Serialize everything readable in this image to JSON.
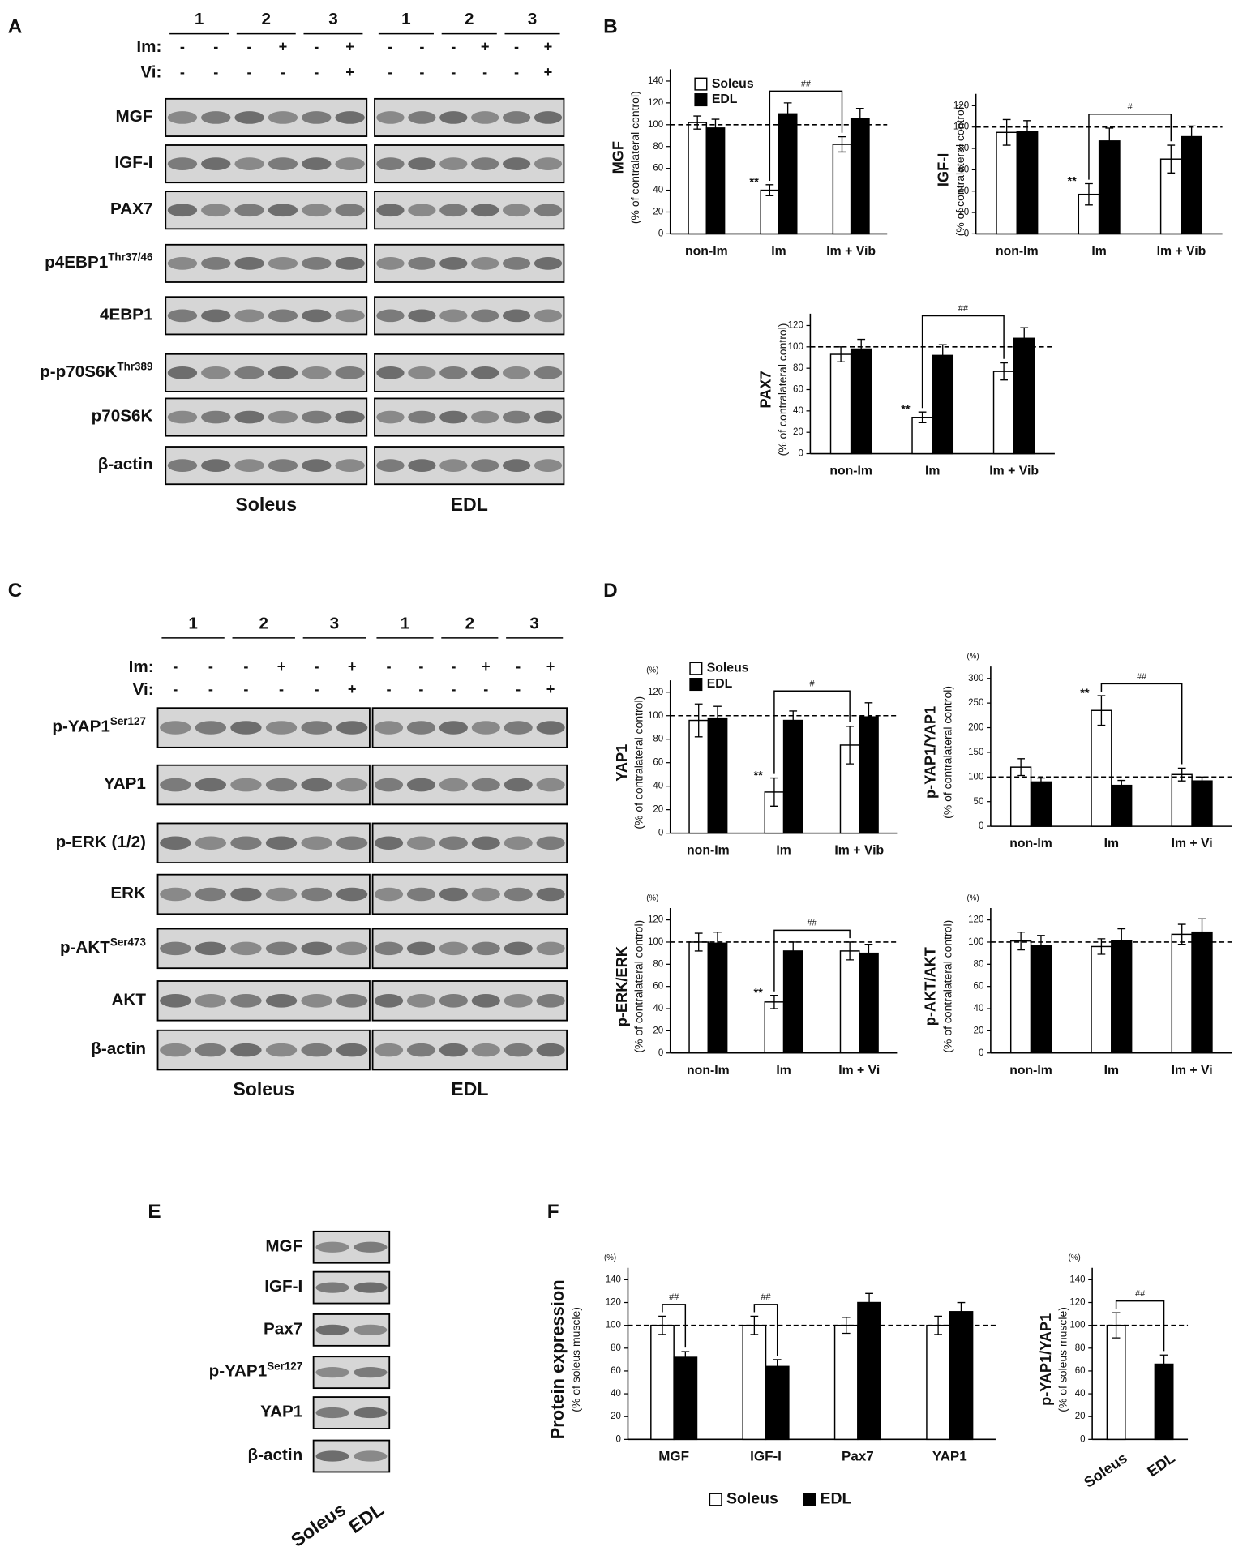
{
  "panels": [
    "A",
    "B",
    "C",
    "D",
    "E",
    "F"
  ],
  "blots": {
    "A": {
      "lanes": [
        "1",
        "2",
        "3"
      ],
      "im_label": "Im:",
      "vi_label": "Vi:",
      "im": [
        "-",
        "-",
        "-",
        "+",
        "-",
        "+"
      ],
      "vi": [
        "-",
        "-",
        "-",
        "-",
        "-",
        "+"
      ],
      "rows": [
        {
          "name": "MGF"
        },
        {
          "name": "IGF-I"
        },
        {
          "name": "PAX7"
        },
        {
          "name": "p4EBP1",
          "sup": "Thr37/46"
        },
        {
          "name": "4EBP1"
        },
        {
          "name": "p-p70S6K",
          "sup": "Thr389"
        },
        {
          "name": "p70S6K"
        },
        {
          "name": "β-actin"
        }
      ],
      "tissues": [
        "Soleus",
        "EDL"
      ]
    },
    "C": {
      "lanes": [
        "1",
        "2",
        "3"
      ],
      "im_label": "Im:",
      "vi_label": "Vi:",
      "im": [
        "-",
        "-",
        "-",
        "+",
        "-",
        "+"
      ],
      "vi": [
        "-",
        "-",
        "-",
        "-",
        "-",
        "+"
      ],
      "rows": [
        {
          "name": "p-YAP1",
          "sup": "Ser127"
        },
        {
          "name": "YAP1"
        },
        {
          "name": "p-ERK (1/2)"
        },
        {
          "name": "ERK"
        },
        {
          "name": "p-AKT",
          "sup": "Ser473"
        },
        {
          "name": "AKT"
        },
        {
          "name": "β-actin"
        }
      ],
      "tissues": [
        "Soleus",
        "EDL"
      ]
    },
    "E": {
      "rows": [
        {
          "name": "MGF"
        },
        {
          "name": "IGF-I"
        },
        {
          "name": "Pax7"
        },
        {
          "name": "p-YAP1",
          "sup": "Ser127"
        },
        {
          "name": "YAP1"
        },
        {
          "name": "β-actin"
        }
      ],
      "tissues": [
        "Soleus",
        "EDL"
      ]
    }
  },
  "chart_data": [
    {
      "type": "bar",
      "ylabel": "MGF",
      "ysublabel": "(% of contralateral control)",
      "categories": [
        "non-Im",
        "Im",
        "Im + Vib"
      ],
      "series": [
        {
          "name": "Soleus",
          "color": "#ffffff",
          "values": [
            102,
            40,
            82
          ],
          "errors": [
            6,
            5,
            7
          ]
        },
        {
          "name": "EDL",
          "color": "#000000",
          "values": [
            97,
            110,
            106
          ],
          "errors": [
            8,
            10,
            9
          ]
        }
      ],
      "ylim": [
        0,
        140
      ],
      "yticks": [
        0,
        20,
        40,
        60,
        80,
        100,
        120,
        140
      ],
      "refline": 100,
      "legend": "top-left",
      "brackets": [
        {
          "between": [
            [
              1,
              0
            ],
            [
              2,
              0
            ]
          ],
          "label": "##"
        }
      ],
      "annotations": [
        {
          "at": [
            1,
            0
          ],
          "label": "**"
        }
      ]
    },
    {
      "type": "bar",
      "ylabel": "IGF-I",
      "ysublabel": "(% of contralateral control)",
      "categories": [
        "non-Im",
        "Im",
        "Im + Vib"
      ],
      "series": [
        {
          "color": "#ffffff",
          "values": [
            95,
            37,
            70
          ],
          "errors": [
            12,
            10,
            13
          ]
        },
        {
          "color": "#000000",
          "values": [
            96,
            87,
            91
          ],
          "errors": [
            10,
            12,
            10
          ]
        }
      ],
      "ylim": [
        0,
        120
      ],
      "yticks": [
        0,
        20,
        40,
        60,
        80,
        100,
        120
      ],
      "refline": 100,
      "brackets": [
        {
          "between": [
            [
              1,
              0
            ],
            [
              2,
              0
            ]
          ],
          "label": "#"
        }
      ],
      "annotations": [
        {
          "at": [
            1,
            0
          ],
          "label": "**"
        }
      ]
    },
    {
      "type": "bar",
      "ylabel": "PAX7",
      "ysublabel": "(% of contralateral control)",
      "categories": [
        "non-Im",
        "Im",
        "Im + Vib"
      ],
      "series": [
        {
          "color": "#ffffff",
          "values": [
            93,
            34,
            77
          ],
          "errors": [
            7,
            5,
            8
          ]
        },
        {
          "color": "#000000",
          "values": [
            98,
            92,
            108
          ],
          "errors": [
            9,
            10,
            10
          ]
        }
      ],
      "ylim": [
        0,
        120
      ],
      "yticks": [
        0,
        20,
        40,
        60,
        80,
        100,
        120
      ],
      "refline": 100,
      "brackets": [
        {
          "between": [
            [
              1,
              0
            ],
            [
              2,
              0
            ]
          ],
          "label": "##"
        }
      ],
      "annotations": [
        {
          "at": [
            1,
            0
          ],
          "label": "**"
        }
      ]
    },
    {
      "type": "bar",
      "ylabel": "YAP1",
      "ysublabel": "(% of contralateral control)",
      "unit": "(%)",
      "categories": [
        "non-Im",
        "Im",
        "Im + Vib"
      ],
      "series": [
        {
          "name": "Soleus",
          "color": "#ffffff",
          "values": [
            96,
            35,
            75
          ],
          "errors": [
            14,
            12,
            16
          ]
        },
        {
          "name": "EDL",
          "color": "#000000",
          "values": [
            98,
            96,
            99
          ],
          "errors": [
            10,
            8,
            12
          ]
        }
      ],
      "ylim": [
        0,
        120
      ],
      "yticks": [
        0,
        20,
        40,
        60,
        80,
        100,
        120
      ],
      "refline": 100,
      "legend": "top-left",
      "brackets": [
        {
          "between": [
            [
              1,
              0
            ],
            [
              2,
              0
            ]
          ],
          "label": "#"
        }
      ],
      "annotations": [
        {
          "at": [
            1,
            0
          ],
          "label": "**"
        }
      ]
    },
    {
      "type": "bar",
      "ylabel": "p-YAP1/YAP1",
      "ysublabel": "(% of contralateral control)",
      "unit": "(%)",
      "categories": [
        "non-Im",
        "Im",
        "Im + Vi"
      ],
      "series": [
        {
          "color": "#ffffff",
          "values": [
            120,
            235,
            105
          ],
          "errors": [
            17,
            30,
            13
          ]
        },
        {
          "color": "#000000",
          "values": [
            90,
            83,
            92
          ],
          "errors": [
            8,
            10,
            8
          ]
        }
      ],
      "ylim": [
        0,
        300
      ],
      "yticks": [
        0,
        50,
        100,
        150,
        200,
        250,
        300
      ],
      "refline": 100,
      "brackets": [
        {
          "between": [
            [
              1,
              0
            ],
            [
              2,
              0
            ]
          ],
          "label": "##"
        }
      ],
      "annotations": [
        {
          "at": [
            1,
            0
          ],
          "label": "**"
        }
      ]
    },
    {
      "type": "bar",
      "ylabel": "p-ERK/ERK",
      "ysublabel": "(% of contralateral control)",
      "unit": "(%)",
      "categories": [
        "non-Im",
        "Im",
        "Im + Vi"
      ],
      "series": [
        {
          "color": "#ffffff",
          "values": [
            100,
            46,
            92
          ],
          "errors": [
            8,
            6,
            8
          ]
        },
        {
          "color": "#000000",
          "values": [
            99,
            92,
            90
          ],
          "errors": [
            10,
            8,
            8
          ]
        }
      ],
      "ylim": [
        0,
        120
      ],
      "yticks": [
        0,
        20,
        40,
        60,
        80,
        100,
        120
      ],
      "refline": 100,
      "brackets": [
        {
          "between": [
            [
              1,
              0
            ],
            [
              2,
              0
            ]
          ],
          "label": "##"
        }
      ],
      "annotations": [
        {
          "at": [
            1,
            0
          ],
          "label": "**"
        }
      ]
    },
    {
      "type": "bar",
      "ylabel": "p-AKT/AKT",
      "ysublabel": "(% of contralateral control)",
      "unit": "(%)",
      "categories": [
        "non-Im",
        "Im",
        "Im + Vi"
      ],
      "series": [
        {
          "color": "#ffffff",
          "values": [
            101,
            96,
            107
          ],
          "errors": [
            8,
            7,
            9
          ]
        },
        {
          "color": "#000000",
          "values": [
            97,
            101,
            109
          ],
          "errors": [
            9,
            11,
            12
          ]
        }
      ],
      "ylim": [
        0,
        120
      ],
      "yticks": [
        0,
        20,
        40,
        60,
        80,
        100,
        120
      ],
      "refline": 100
    },
    {
      "type": "bar",
      "ylabel": "Protein expression",
      "ysublabel": "(% of soleus muscle)",
      "unit": "(%)",
      "categories": [
        "MGF",
        "IGF-I",
        "Pax7",
        "YAP1"
      ],
      "series": [
        {
          "name": "Soleus",
          "color": "#ffffff",
          "values": [
            100,
            100,
            100,
            100
          ],
          "errors": [
            8,
            8,
            7,
            8
          ]
        },
        {
          "name": "EDL",
          "color": "#000000",
          "values": [
            72,
            64,
            120,
            112
          ],
          "errors": [
            5,
            6,
            8,
            8
          ]
        }
      ],
      "ylim": [
        0,
        140
      ],
      "yticks": [
        0,
        20,
        40,
        60,
        80,
        100,
        120,
        140
      ],
      "refline": 100,
      "legend": "bottom",
      "brackets": [
        {
          "between": [
            [
              0,
              0
            ],
            [
              0,
              1
            ]
          ],
          "label": "##"
        },
        {
          "between": [
            [
              1,
              0
            ],
            [
              1,
              1
            ]
          ],
          "label": "##"
        }
      ]
    },
    {
      "type": "bar",
      "ylabel": "p-YAP1/YAP1",
      "ysublabel": "(% of soleus muscle)",
      "unit": "(%)",
      "categories": [
        "Soleus",
        "EDL"
      ],
      "series": [
        {
          "colors": [
            "#ffffff",
            "#000000"
          ],
          "values": [
            100,
            66
          ],
          "errors": [
            11,
            8
          ]
        }
      ],
      "ylim": [
        0,
        140
      ],
      "yticks": [
        0,
        20,
        40,
        60,
        80,
        100,
        120,
        140
      ],
      "refline": 100,
      "brackets": [
        {
          "between": [
            [
              0,
              0
            ],
            [
              1,
              0
            ]
          ],
          "label": "##"
        }
      ]
    }
  ]
}
